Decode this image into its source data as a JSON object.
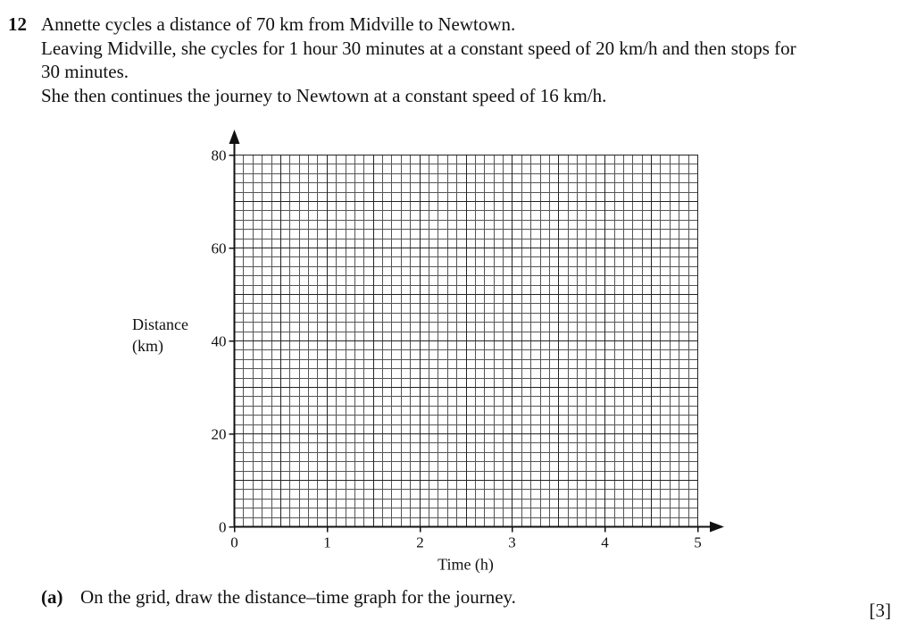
{
  "question": {
    "number": "12",
    "lines": [
      "Annette cycles a distance of 70 km from Midville to Newtown.",
      "Leaving Midville, she cycles for 1 hour 30 minutes at a constant speed of 20 km/h and then stops for",
      "30 minutes.",
      "She then continues the journey to Newtown at a constant speed of 16 km/h."
    ]
  },
  "chart_data": {
    "type": "line",
    "title": "",
    "xlabel": "Time (h)",
    "ylabel": "Distance\n(km)",
    "ylabel_lines": [
      "Distance",
      "(km)"
    ],
    "xlim": [
      0,
      5
    ],
    "ylim": [
      0,
      80
    ],
    "x_ticks": [
      0,
      1,
      2,
      3,
      4,
      5
    ],
    "y_ticks": [
      0,
      20,
      40,
      60,
      80
    ],
    "grid": true,
    "grid_minor_x": 0.1,
    "grid_minor_y": 2,
    "grid_major_x": 0.5,
    "grid_major_y": 10,
    "series": []
  },
  "part_a": {
    "label": "(a)",
    "text": "On the grid, draw the distance–time graph for the journey.",
    "marks": "[3]"
  }
}
